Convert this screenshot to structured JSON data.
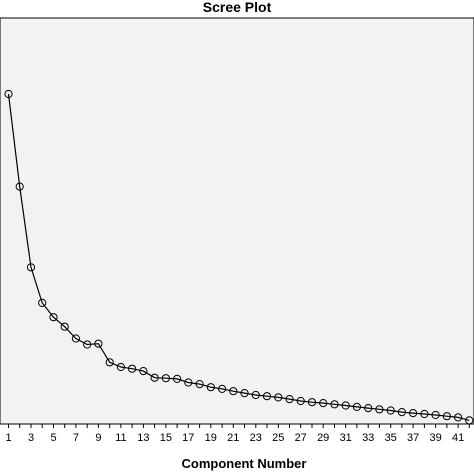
{
  "chart_data": {
    "type": "line",
    "title": "Scree Plot",
    "xlabel": "Component Number",
    "ylabel": "",
    "x": [
      1,
      2,
      3,
      4,
      5,
      6,
      7,
      8,
      9,
      10,
      11,
      12,
      13,
      14,
      15,
      16,
      17,
      18,
      19,
      20,
      21,
      22,
      23,
      24,
      25,
      26,
      27,
      28,
      29,
      30,
      31,
      32,
      33,
      34,
      35,
      36,
      37,
      38,
      39,
      40,
      41,
      42
    ],
    "x_tick_labels": [
      "1",
      "3",
      "5",
      "7",
      "9",
      "11",
      "13",
      "15",
      "17",
      "19",
      "21",
      "23",
      "25",
      "27",
      "29",
      "31",
      "33",
      "35",
      "37",
      "39",
      "41"
    ],
    "series": [
      {
        "values": [
          13.9,
          10.0,
          6.6,
          5.1,
          4.5,
          4.1,
          3.6,
          3.35,
          3.38,
          2.6,
          2.4,
          2.33,
          2.23,
          1.95,
          1.93,
          1.9,
          1.75,
          1.68,
          1.55,
          1.48,
          1.38,
          1.3,
          1.22,
          1.17,
          1.12,
          1.05,
          0.97,
          0.92,
          0.88,
          0.83,
          0.78,
          0.72,
          0.67,
          0.62,
          0.57,
          0.5,
          0.46,
          0.42,
          0.38,
          0.33,
          0.28,
          0.15
        ]
      }
    ],
    "ylim": [
      0,
      17.1
    ],
    "xlim": [
      0.5,
      42
    ],
    "grid": false,
    "legend": "none",
    "marker": "circle",
    "line_color": "#000000",
    "background_color": "#f2f2f2"
  }
}
